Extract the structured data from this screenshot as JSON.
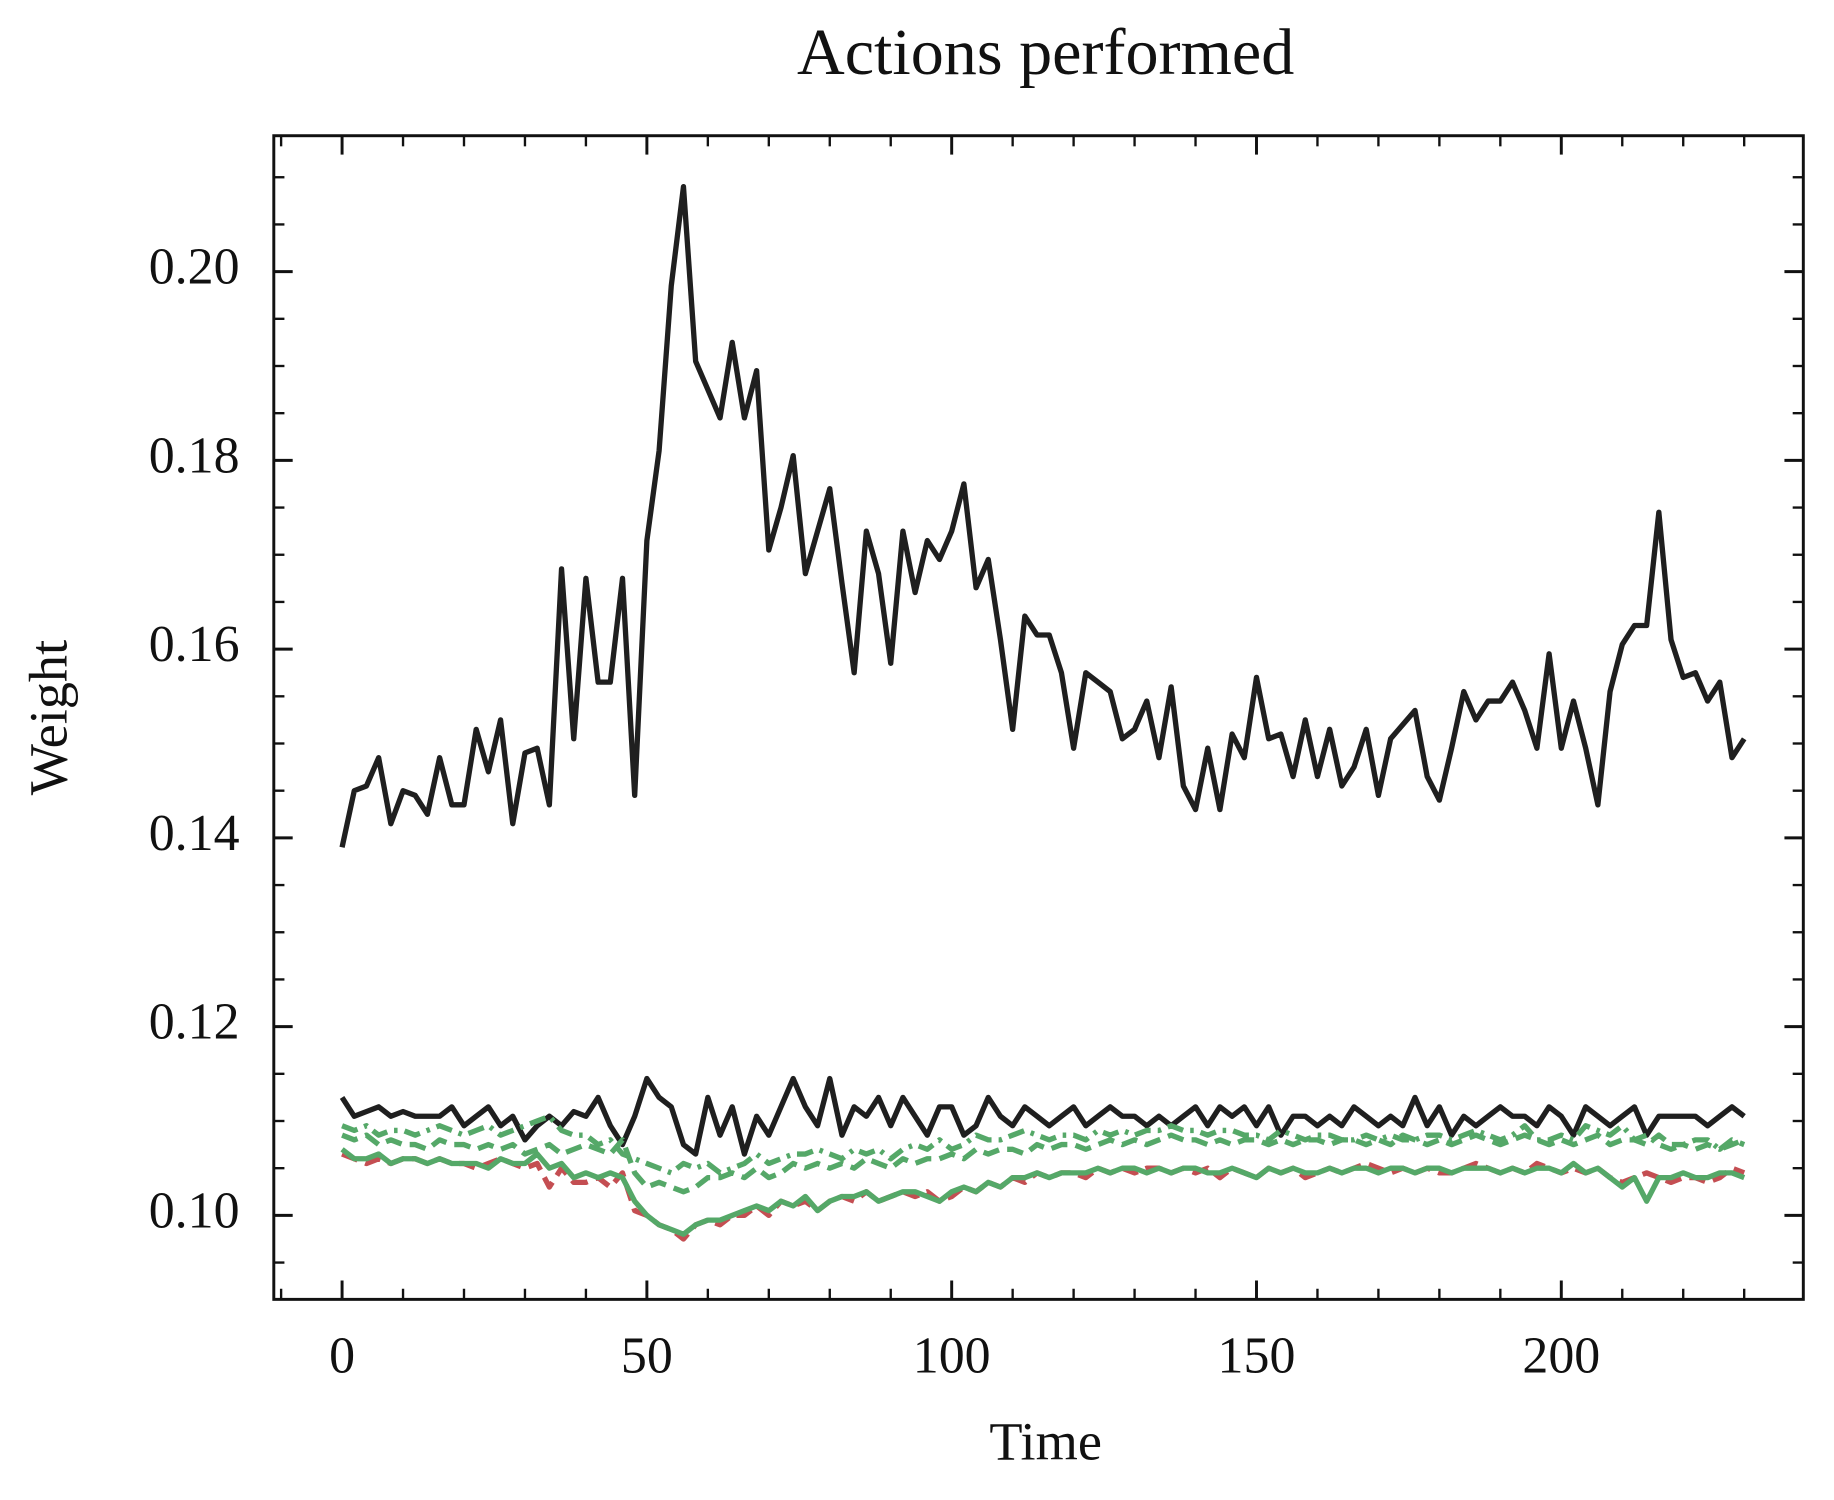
{
  "chart_data": {
    "type": "line",
    "title": "Actions performed",
    "xlabel": "Time",
    "ylabel": "Weight",
    "x": [
      0,
      2,
      4,
      6,
      8,
      10,
      12,
      14,
      16,
      18,
      20,
      22,
      24,
      26,
      28,
      30,
      32,
      34,
      36,
      38,
      40,
      42,
      44,
      46,
      48,
      50,
      52,
      54,
      56,
      58,
      60,
      62,
      64,
      66,
      68,
      70,
      72,
      74,
      76,
      78,
      80,
      82,
      84,
      86,
      88,
      90,
      92,
      94,
      96,
      98,
      100,
      102,
      104,
      106,
      108,
      110,
      112,
      114,
      116,
      118,
      120,
      122,
      124,
      126,
      128,
      130,
      132,
      134,
      136,
      138,
      140,
      142,
      144,
      146,
      148,
      150,
      152,
      154,
      156,
      158,
      160,
      162,
      164,
      166,
      168,
      170,
      172,
      174,
      176,
      178,
      180,
      182,
      184,
      186,
      188,
      190,
      192,
      194,
      196,
      198,
      200,
      202,
      204,
      206,
      208,
      210,
      212,
      214,
      216,
      218,
      220,
      222,
      224,
      226,
      228,
      230
    ],
    "series": [
      {
        "color": "#1f1f1f",
        "style": "solid",
        "values": [
          0.139,
          0.145,
          0.1455,
          0.1485,
          0.1415,
          0.145,
          0.1445,
          0.1425,
          0.1485,
          0.1435,
          0.1435,
          0.1515,
          0.147,
          0.1525,
          0.1415,
          0.149,
          0.1495,
          0.1435,
          0.1685,
          0.1505,
          0.1675,
          0.1565,
          0.1565,
          0.1675,
          0.1445,
          0.1715,
          0.181,
          0.1985,
          0.209,
          0.1905,
          0.1875,
          0.1845,
          0.1925,
          0.1845,
          0.1895,
          0.1705,
          0.175,
          0.1805,
          0.168,
          0.1725,
          0.177,
          0.167,
          0.1575,
          0.1725,
          0.168,
          0.1585,
          0.1725,
          0.166,
          0.1715,
          0.1695,
          0.1725,
          0.1775,
          0.1665,
          0.1695,
          0.161,
          0.1515,
          0.1635,
          0.1615,
          0.1615,
          0.1575,
          0.1495,
          0.1575,
          0.1565,
          0.1555,
          0.1505,
          0.1515,
          0.1545,
          0.1485,
          0.156,
          0.1455,
          0.143,
          0.1495,
          0.143,
          0.151,
          0.1485,
          0.157,
          0.1505,
          0.151,
          0.1465,
          0.1525,
          0.1465,
          0.1515,
          0.1455,
          0.1475,
          0.1515,
          0.1445,
          0.1505,
          0.152,
          0.1535,
          0.1465,
          0.144,
          0.1495,
          0.1555,
          0.1525,
          0.1545,
          0.1545,
          0.1565,
          0.1535,
          0.1495,
          0.1595,
          0.1495,
          0.1545,
          0.1495,
          0.1435,
          0.1555,
          0.1605,
          0.1625,
          0.1625,
          0.1745,
          0.161,
          0.157,
          0.1575,
          0.1545,
          0.1565,
          0.1485,
          0.1505
        ]
      },
      {
        "color": "#1f1f1f",
        "style": "solid",
        "values": [
          0.1125,
          0.1105,
          0.111,
          0.1115,
          0.1105,
          0.111,
          0.1105,
          0.1105,
          0.1105,
          0.1115,
          0.1095,
          0.1105,
          0.1115,
          0.1095,
          0.1105,
          0.108,
          0.1095,
          0.1105,
          0.1095,
          0.111,
          0.1105,
          0.1125,
          0.1095,
          0.1075,
          0.1105,
          0.1145,
          0.1125,
          0.1115,
          0.1075,
          0.1065,
          0.1125,
          0.1085,
          0.1115,
          0.1065,
          0.1105,
          0.1085,
          0.1115,
          0.1145,
          0.1115,
          0.1095,
          0.1145,
          0.1085,
          0.1115,
          0.1105,
          0.1125,
          0.1095,
          0.1125,
          0.1105,
          0.1085,
          0.1115,
          0.1115,
          0.1085,
          0.1095,
          0.1125,
          0.1105,
          0.1095,
          0.1115,
          0.1105,
          0.1095,
          0.1105,
          0.1115,
          0.1095,
          0.1105,
          0.1115,
          0.1105,
          0.1105,
          0.1095,
          0.1105,
          0.1095,
          0.1105,
          0.1115,
          0.1095,
          0.1115,
          0.1105,
          0.1115,
          0.1095,
          0.1115,
          0.1085,
          0.1105,
          0.1105,
          0.1095,
          0.1105,
          0.1095,
          0.1115,
          0.1105,
          0.1095,
          0.1105,
          0.1095,
          0.1125,
          0.1095,
          0.1115,
          0.1085,
          0.1105,
          0.1095,
          0.1105,
          0.1115,
          0.1105,
          0.1105,
          0.1095,
          0.1115,
          0.1105,
          0.1085,
          0.1115,
          0.1105,
          0.1095,
          0.1105,
          0.1115,
          0.1085,
          0.1105,
          0.1105,
          0.1105,
          0.1105,
          0.1095,
          0.1105,
          0.1115,
          0.1105
        ]
      },
      {
        "color": "#55a868",
        "style": "dashdot",
        "values": [
          0.1095,
          0.109,
          0.1095,
          0.1085,
          0.109,
          0.109,
          0.1085,
          0.109,
          0.1095,
          0.109,
          0.1085,
          0.109,
          0.1095,
          0.1085,
          0.109,
          0.1095,
          0.11,
          0.1105,
          0.109,
          0.1085,
          0.1085,
          0.1075,
          0.108,
          0.1065,
          0.106,
          0.1055,
          0.105,
          0.1045,
          0.1055,
          0.105,
          0.1055,
          0.1045,
          0.105,
          0.1055,
          0.1065,
          0.1055,
          0.106,
          0.1065,
          0.1065,
          0.107,
          0.1065,
          0.106,
          0.107,
          0.1065,
          0.107,
          0.106,
          0.107,
          0.1075,
          0.107,
          0.108,
          0.107,
          0.1075,
          0.1085,
          0.108,
          0.108,
          0.1085,
          0.109,
          0.1085,
          0.108,
          0.1085,
          0.1085,
          0.108,
          0.109,
          0.1085,
          0.109,
          0.1085,
          0.109,
          0.109,
          0.1095,
          0.109,
          0.109,
          0.1085,
          0.109,
          0.109,
          0.1085,
          0.1085,
          0.108,
          0.109,
          0.1085,
          0.108,
          0.1085,
          0.1085,
          0.108,
          0.108,
          0.1085,
          0.108,
          0.1085,
          0.108,
          0.108,
          0.1085,
          0.1085,
          0.108,
          0.1085,
          0.109,
          0.1085,
          0.108,
          0.1085,
          0.1095,
          0.108,
          0.108,
          0.1085,
          0.108,
          0.1095,
          0.109,
          0.1085,
          0.1095,
          0.108,
          0.1085,
          0.1075,
          0.107,
          0.1075,
          0.108,
          0.108,
          0.107,
          0.1075,
          0.108
        ]
      },
      {
        "color": "#55a868",
        "style": "dashed",
        "values": [
          0.1085,
          0.108,
          0.1085,
          0.1075,
          0.108,
          0.1075,
          0.1075,
          0.107,
          0.108,
          0.1075,
          0.1075,
          0.107,
          0.1075,
          0.107,
          0.1075,
          0.1065,
          0.107,
          0.1075,
          0.1065,
          0.107,
          0.1075,
          0.107,
          0.1065,
          0.108,
          0.1045,
          0.103,
          0.1035,
          0.103,
          0.1025,
          0.103,
          0.104,
          0.104,
          0.1045,
          0.104,
          0.105,
          0.104,
          0.1045,
          0.1055,
          0.105,
          0.1055,
          0.105,
          0.1055,
          0.105,
          0.106,
          0.1055,
          0.105,
          0.106,
          0.1055,
          0.106,
          0.106,
          0.1065,
          0.106,
          0.107,
          0.1065,
          0.107,
          0.107,
          0.1065,
          0.1075,
          0.107,
          0.1075,
          0.1075,
          0.107,
          0.1075,
          0.108,
          0.1075,
          0.108,
          0.1075,
          0.108,
          0.1085,
          0.108,
          0.108,
          0.1075,
          0.108,
          0.1075,
          0.108,
          0.108,
          0.1075,
          0.108,
          0.1075,
          0.108,
          0.108,
          0.1075,
          0.108,
          0.108,
          0.1075,
          0.108,
          0.1075,
          0.1085,
          0.108,
          0.1075,
          0.108,
          0.1075,
          0.108,
          0.1085,
          0.108,
          0.1075,
          0.108,
          0.1085,
          0.108,
          0.1075,
          0.108,
          0.1075,
          0.108,
          0.1085,
          0.1075,
          0.108,
          0.108,
          0.1075,
          0.1085,
          0.1075,
          0.1075,
          0.107,
          0.1075,
          0.107,
          0.108,
          0.1075
        ]
      },
      {
        "color": "#c44e52",
        "style": "dashed",
        "values": [
          0.1065,
          0.106,
          0.1055,
          0.106,
          0.1055,
          0.106,
          0.106,
          0.1055,
          0.106,
          0.1055,
          0.1055,
          0.105,
          0.1055,
          0.106,
          0.1055,
          0.105,
          0.1055,
          0.103,
          0.105,
          0.1035,
          0.1035,
          0.104,
          0.103,
          0.1045,
          0.1005,
          0.1,
          0.099,
          0.0985,
          0.0975,
          0.099,
          0.0995,
          0.099,
          0.1,
          0.1,
          0.101,
          0.1,
          0.1015,
          0.101,
          0.1015,
          0.1005,
          0.1015,
          0.102,
          0.1015,
          0.1025,
          0.1015,
          0.102,
          0.1025,
          0.102,
          0.1025,
          0.1015,
          0.102,
          0.103,
          0.1025,
          0.1035,
          0.103,
          0.104,
          0.1035,
          0.1045,
          0.104,
          0.1045,
          0.1045,
          0.104,
          0.105,
          0.1045,
          0.105,
          0.1045,
          0.105,
          0.105,
          0.1045,
          0.105,
          0.1045,
          0.105,
          0.104,
          0.105,
          0.1045,
          0.104,
          0.105,
          0.1045,
          0.105,
          0.104,
          0.1045,
          0.105,
          0.1045,
          0.105,
          0.1055,
          0.105,
          0.1045,
          0.105,
          0.1045,
          0.105,
          0.1045,
          0.1045,
          0.105,
          0.1055,
          0.105,
          0.1045,
          0.105,
          0.1045,
          0.1055,
          0.105,
          0.1045,
          0.105,
          0.1045,
          0.105,
          0.104,
          0.1035,
          0.104,
          0.1045,
          0.104,
          0.1035,
          0.104,
          0.104,
          0.1035,
          0.104,
          0.105,
          0.1045
        ]
      },
      {
        "color": "#55a868",
        "style": "solid",
        "values": [
          0.107,
          0.106,
          0.106,
          0.1065,
          0.1055,
          0.106,
          0.106,
          0.1055,
          0.106,
          0.1055,
          0.1055,
          0.1055,
          0.105,
          0.106,
          0.1055,
          0.1055,
          0.1065,
          0.105,
          0.1055,
          0.104,
          0.1045,
          0.104,
          0.1045,
          0.104,
          0.1015,
          0.1,
          0.099,
          0.0985,
          0.098,
          0.099,
          0.0995,
          0.0995,
          0.1,
          0.1005,
          0.101,
          0.1005,
          0.1015,
          0.101,
          0.102,
          0.1005,
          0.1015,
          0.102,
          0.102,
          0.1025,
          0.1015,
          0.102,
          0.1025,
          0.1025,
          0.102,
          0.1015,
          0.1025,
          0.103,
          0.1025,
          0.1035,
          0.103,
          0.104,
          0.104,
          0.1045,
          0.104,
          0.1045,
          0.1045,
          0.1045,
          0.105,
          0.1045,
          0.105,
          0.105,
          0.1045,
          0.105,
          0.1045,
          0.105,
          0.105,
          0.1045,
          0.1045,
          0.105,
          0.1045,
          0.104,
          0.105,
          0.1045,
          0.105,
          0.1045,
          0.1045,
          0.105,
          0.1045,
          0.105,
          0.105,
          0.1045,
          0.105,
          0.105,
          0.1045,
          0.105,
          0.105,
          0.1045,
          0.105,
          0.105,
          0.105,
          0.1045,
          0.105,
          0.1045,
          0.105,
          0.105,
          0.1045,
          0.1055,
          0.1045,
          0.105,
          0.104,
          0.103,
          0.104,
          0.1015,
          0.104,
          0.104,
          0.1045,
          0.104,
          0.104,
          0.1045,
          0.1045,
          0.104
        ]
      }
    ],
    "xlim": [
      -11.2,
      239.7
    ],
    "ylim": [
      0.0911,
      0.2144
    ],
    "xticks": [
      0,
      50,
      100,
      150,
      200
    ],
    "xminorticks": [
      -10,
      10,
      20,
      30,
      40,
      60,
      70,
      80,
      90,
      110,
      120,
      130,
      140,
      160,
      170,
      180,
      190,
      210,
      220,
      230
    ],
    "yticks": [
      {
        "value": 0.1,
        "label": "0.10"
      },
      0.12,
      0.14,
      0.16,
      0.18,
      {
        "value": 0.2,
        "label": "0.20"
      }
    ],
    "yminorticks": [
      0.095,
      0.105,
      0.11,
      0.115,
      0.125,
      0.13,
      0.135,
      0.145,
      0.15,
      0.155,
      0.165,
      0.17,
      0.175,
      0.185,
      0.19,
      0.195,
      0.205,
      0.21
    ],
    "grid": false
  }
}
